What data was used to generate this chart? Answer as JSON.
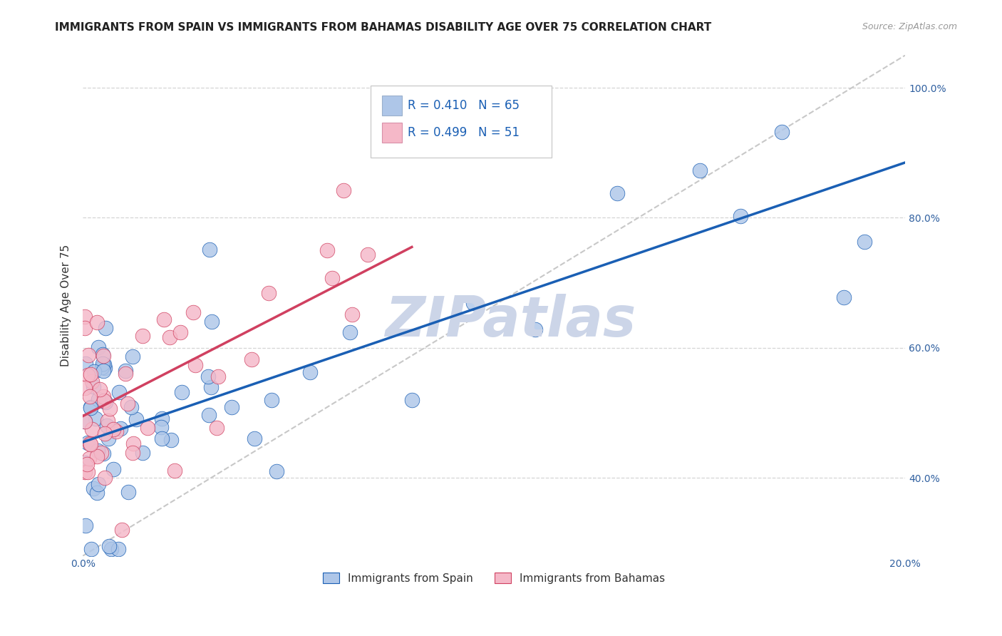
{
  "title": "IMMIGRANTS FROM SPAIN VS IMMIGRANTS FROM BAHAMAS DISABILITY AGE OVER 75 CORRELATION CHART",
  "source": "Source: ZipAtlas.com",
  "ylabel": "Disability Age Over 75",
  "x_min": 0.0,
  "x_max": 0.2,
  "y_min": 0.28,
  "y_max": 1.05,
  "legend_labels": [
    "Immigrants from Spain",
    "Immigrants from Bahamas"
  ],
  "legend_R": [
    "0.410",
    "0.499"
  ],
  "legend_N": [
    "65",
    "51"
  ],
  "dot_color_spain": "#aec6e8",
  "dot_color_bahamas": "#f5b8c8",
  "line_color_spain": "#1a5fb4",
  "line_color_bahamas": "#d04060",
  "ref_line_color": "#c8c8c8",
  "watermark": "ZIPatlas",
  "watermark_color": "#ccd5e8",
  "title_fontsize": 11,
  "tick_fontsize": 10,
  "source_fontsize": 9,
  "spain_line_x0": 0.0,
  "spain_line_y0": 0.455,
  "spain_line_x1": 0.2,
  "spain_line_y1": 0.885,
  "bahamas_line_x0": 0.0,
  "bahamas_line_y0": 0.495,
  "bahamas_line_x1": 0.08,
  "bahamas_line_y1": 0.755,
  "ref_line_x0": 0.0,
  "ref_line_y0": 0.28,
  "ref_line_x1": 0.2,
  "ref_line_y1": 1.05
}
